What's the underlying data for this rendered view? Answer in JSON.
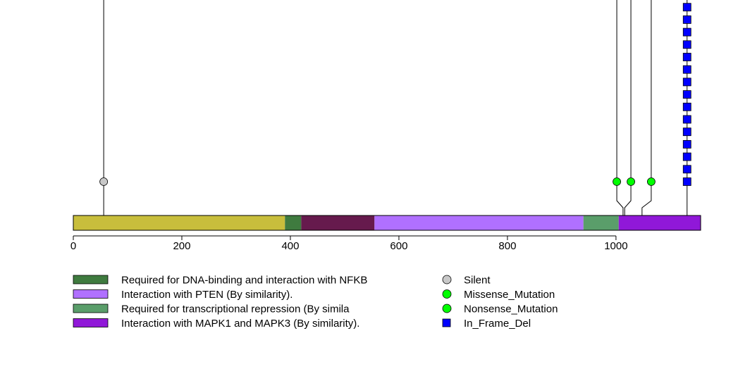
{
  "chart_data": {
    "type": "lollipop",
    "xlim": [
      0,
      1156
    ],
    "ticks": [
      0,
      200,
      400,
      600,
      800,
      1000
    ],
    "tick_labels": [
      "0",
      "200",
      "400",
      "600",
      "800",
      "1000"
    ],
    "protein_length": 1156,
    "domains": [
      {
        "start": 0,
        "end": 390,
        "color": "#C8BE3C"
      },
      {
        "start": 390,
        "end": 420,
        "color": "#3F7B3F"
      },
      {
        "start": 420,
        "end": 555,
        "color": "#661A4D"
      },
      {
        "start": 555,
        "end": 940,
        "color": "#B070FF"
      },
      {
        "start": 940,
        "end": 1005,
        "color": "#5A9E6A"
      },
      {
        "start": 1005,
        "end": 1156,
        "color": "#9018D8"
      }
    ],
    "mutations": [
      {
        "position": 56,
        "type": "Silent",
        "count": 1,
        "color": "#C8C8C8",
        "shape": "circle"
      },
      {
        "position": 1013,
        "type": "Missense_Mutation",
        "count": 1,
        "color": "#00FF00",
        "shape": "circle"
      },
      {
        "position": 1016,
        "type": "Missense_Mutation",
        "count": 1,
        "color": "#00FF00",
        "shape": "circle"
      },
      {
        "position": 1048,
        "type": "Nonsense_Mutation",
        "count": 1,
        "color": "#00FF00",
        "shape": "circle"
      },
      {
        "position": 1131,
        "type": "In_Frame_Del",
        "count": 16,
        "color": "#0000FF",
        "shape": "square"
      }
    ],
    "legend_domains": [
      {
        "label": "Required for DNA-binding and interaction with NFKB",
        "color": "#3F7B3F"
      },
      {
        "label": "Interaction with PTEN (By similarity).",
        "color": "#B070FF"
      },
      {
        "label": "Required for transcriptional repression (By simila",
        "color": "#5A9E6A"
      },
      {
        "label": "Interaction with MAPK1 and MAPK3 (By similarity).",
        "color": "#9018D8"
      }
    ],
    "legend_mutations": [
      {
        "label": "Silent",
        "color": "#C8C8C8",
        "shape": "circle"
      },
      {
        "label": "Missense_Mutation",
        "color": "#00FF00",
        "shape": "circle"
      },
      {
        "label": "Nonsense_Mutation",
        "color": "#00FF00",
        "shape": "circle"
      },
      {
        "label": "In_Frame_Del",
        "color": "#0000FF",
        "shape": "square"
      }
    ]
  }
}
